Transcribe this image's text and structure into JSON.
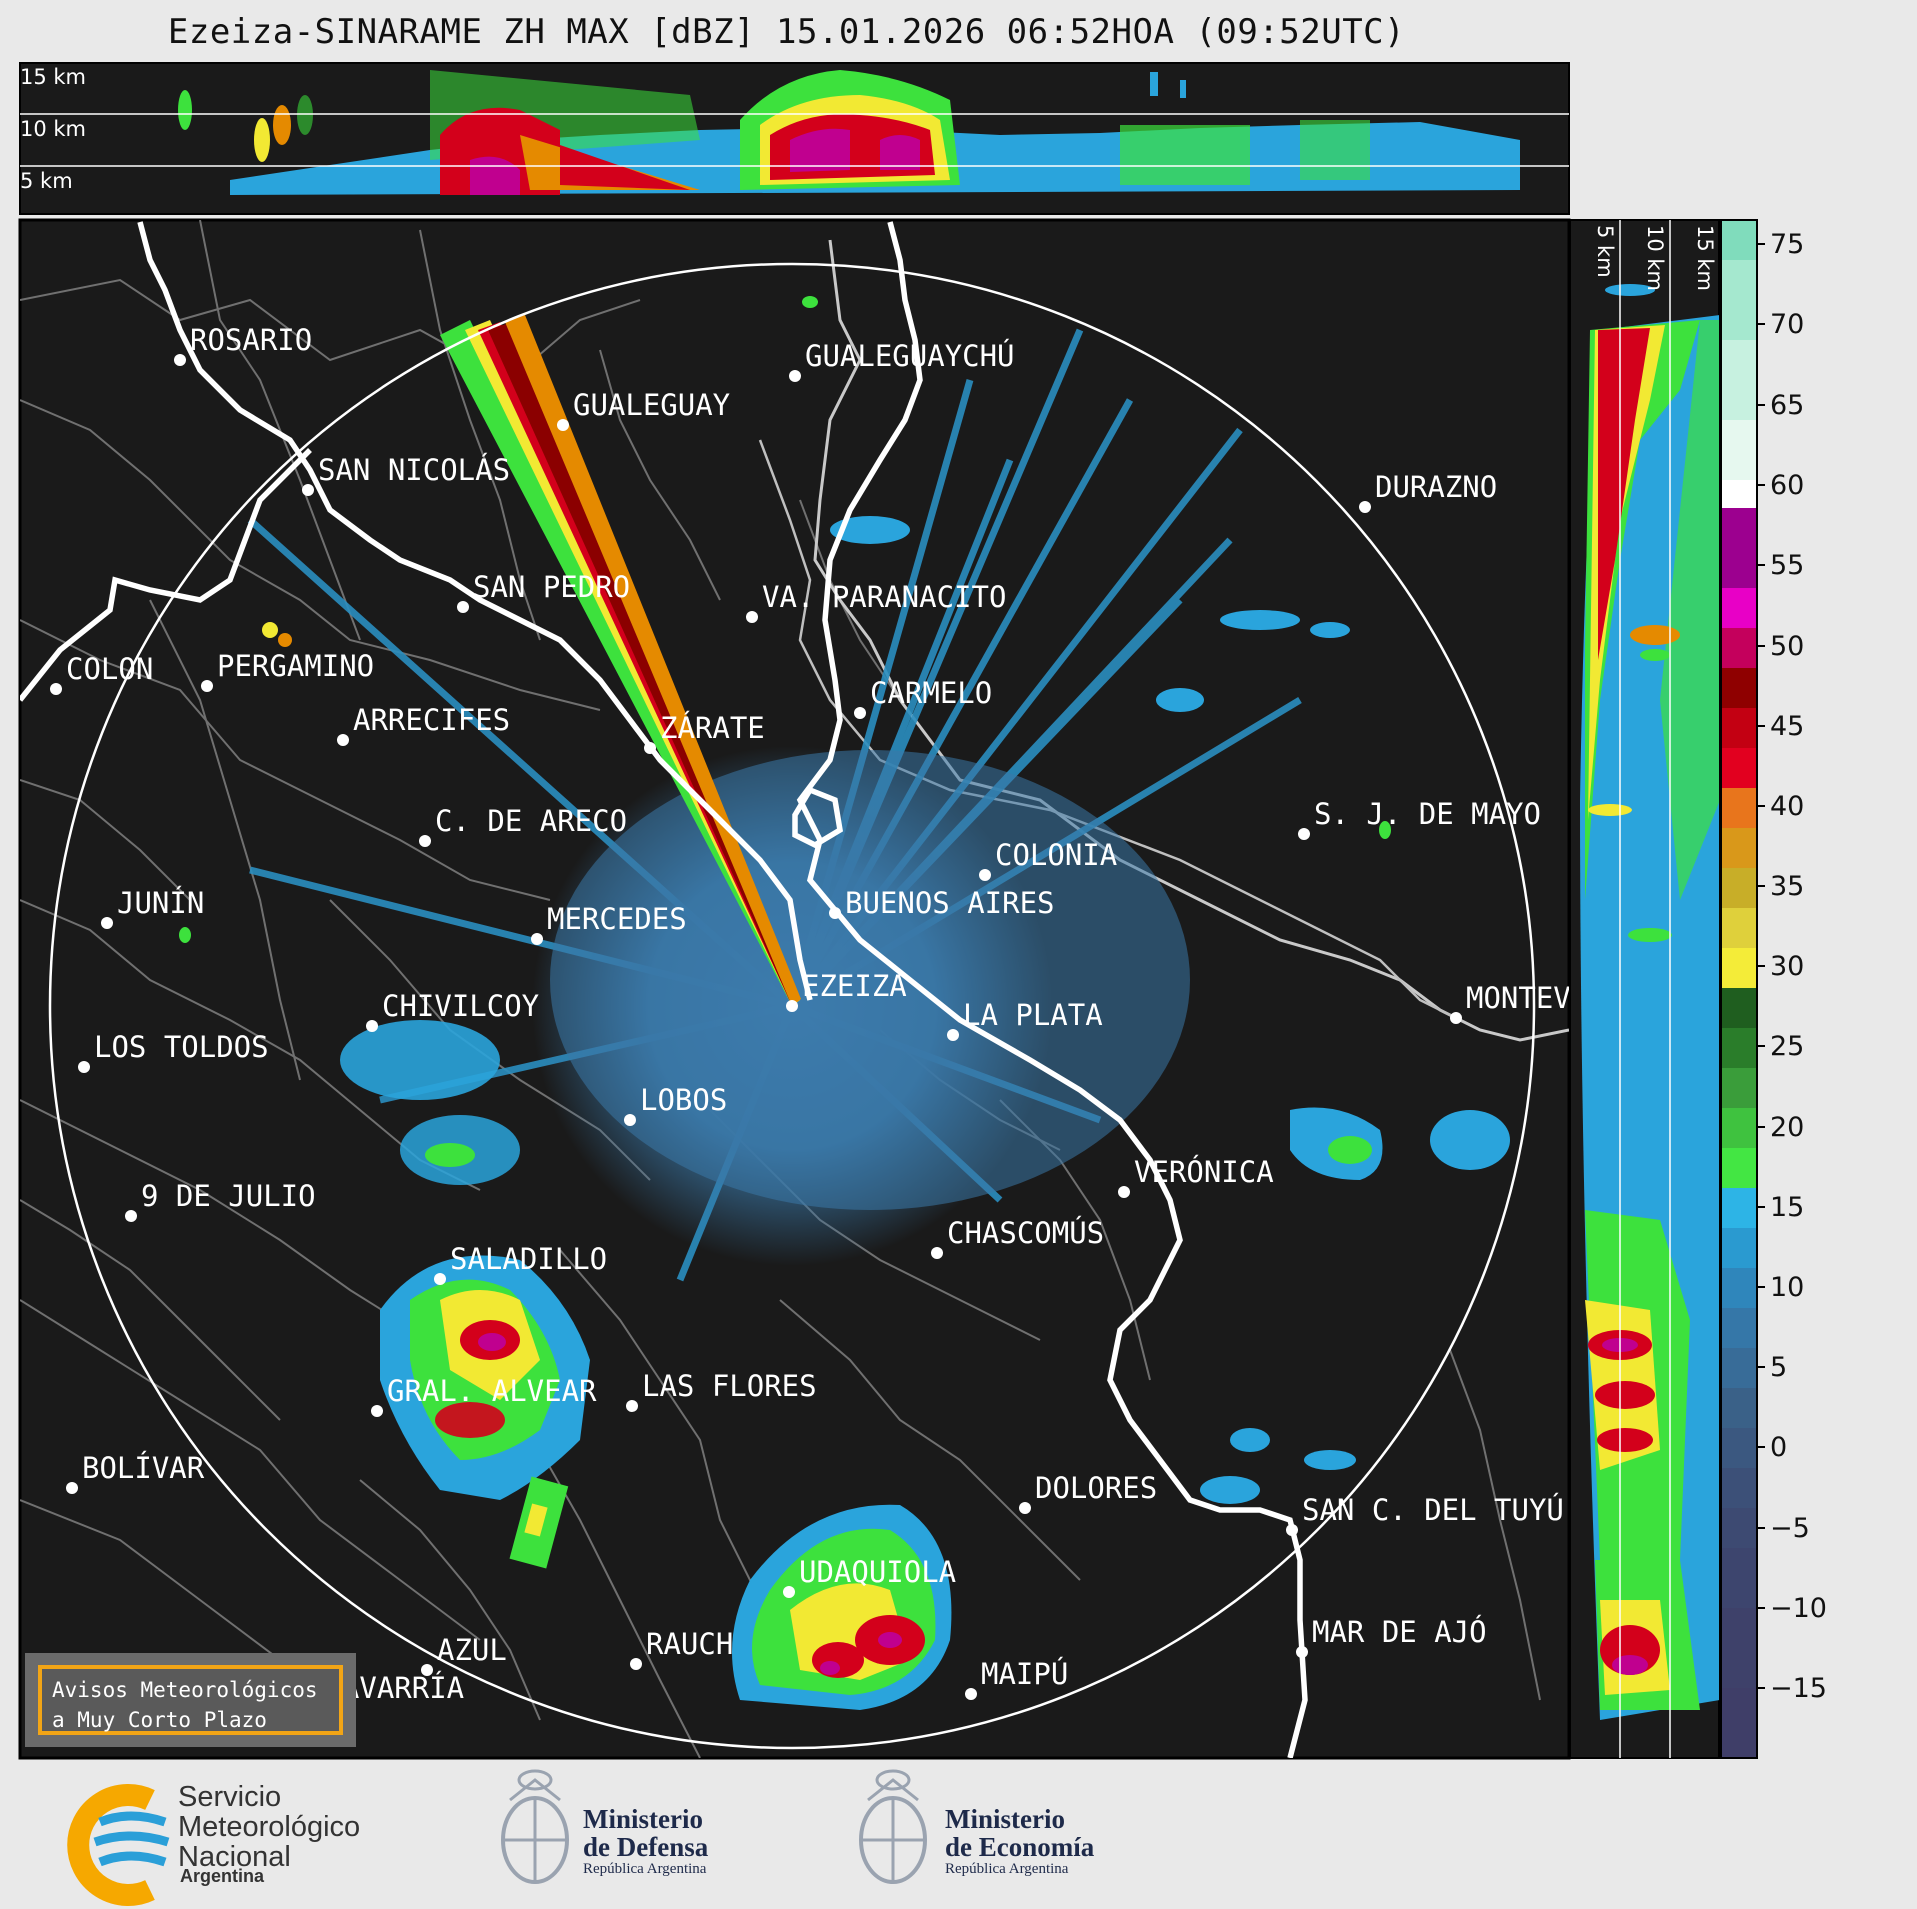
{
  "title": "Ezeiza-SINARAME ZH MAX [dBZ] 15.01.2026 06:52HOA (09:52UTC)",
  "top_panel": {
    "height_labels": [
      "15 km",
      "10 km",
      "5 km"
    ]
  },
  "side_panel": {
    "height_labels": [
      "5 km",
      "10 km",
      "15 km"
    ]
  },
  "colorbar": {
    "ticks": [
      "75",
      "70",
      "65",
      "60",
      "55",
      "50",
      "45",
      "40",
      "35",
      "30",
      "25",
      "20",
      "15",
      "10",
      "5",
      "0",
      "−5",
      "−10",
      "−15"
    ],
    "colors": {
      "teal": "#7fd9b8",
      "white": "#ffffff",
      "magenta": "#c0008f",
      "red": "#d3001b",
      "orange": "#e58a00",
      "yellow": "#f2e933",
      "green": "#2c8a2c",
      "lightgreen": "#3de13d",
      "blue": "#2aa4dc",
      "steel": "#3a78a8",
      "navy": "#38406a"
    }
  },
  "cities": [
    {
      "name": "ROSARIO"
    },
    {
      "name": "GUALEGUAYCHÚ"
    },
    {
      "name": "GUALEGUAY"
    },
    {
      "name": "SAN NICOLÁS"
    },
    {
      "name": "DURAZNO"
    },
    {
      "name": "SAN PEDRO"
    },
    {
      "name": "VA. PARANACITO"
    },
    {
      "name": "COLON"
    },
    {
      "name": "PERGAMINO"
    },
    {
      "name": "CARMELO"
    },
    {
      "name": "ARRECIFES"
    },
    {
      "name": "ZÁRATE"
    },
    {
      "name": "S. J. DE MAYO"
    },
    {
      "name": "C. DE ARECO"
    },
    {
      "name": "COLONIA"
    },
    {
      "name": "JUNÍN"
    },
    {
      "name": "BUENOS AIRES"
    },
    {
      "name": "MERCEDES"
    },
    {
      "name": "EZEIZA"
    },
    {
      "name": "MONTEVIDEO"
    },
    {
      "name": "CHIVILCOY"
    },
    {
      "name": "LA PLATA"
    },
    {
      "name": "LOS TOLDOS"
    },
    {
      "name": "LOBOS"
    },
    {
      "name": "VERÓNICA"
    },
    {
      "name": "9 DE JULIO"
    },
    {
      "name": "CHASCOMÚS"
    },
    {
      "name": "SALADILLO"
    },
    {
      "name": "GRAL. ALVEAR"
    },
    {
      "name": "LAS FLORES"
    },
    {
      "name": "BOLÍVAR"
    },
    {
      "name": "DOLORES"
    },
    {
      "name": "SAN C. DEL TUYÚ"
    },
    {
      "name": "UDAQUIOLA"
    },
    {
      "name": "MAR DE AJÓ"
    },
    {
      "name": "AZUL"
    },
    {
      "name": "RAUCH"
    },
    {
      "name": "MAIPÚ"
    },
    {
      "name": "OLAVARRÍA"
    }
  ],
  "warning_box": {
    "line1": "Avisos Meteorológicos",
    "line2": "a Muy Corto Plazo"
  },
  "logos": {
    "smn": {
      "lines": [
        "Servicio",
        "Meteorológico",
        "Nacional"
      ],
      "sub": "Argentina",
      "icon": "smn-logo-icon"
    },
    "defensa": {
      "title1": "Ministerio",
      "title2": "de Defensa",
      "sub": "República Argentina",
      "icon": "argentina-coat-of-arms-icon"
    },
    "economia": {
      "title1": "Ministerio",
      "title2": "de Economía",
      "sub": "República Argentina",
      "icon": "argentina-coat-of-arms-icon"
    }
  }
}
